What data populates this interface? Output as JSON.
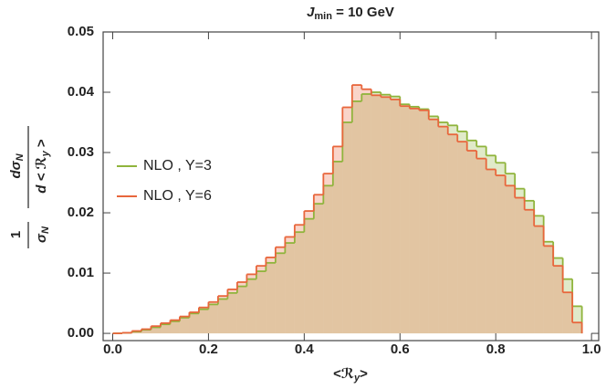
{
  "chart_data": {
    "type": "histogram",
    "title": [
      "J",
      "min",
      " = 10 GeV"
    ],
    "xlabel": [
      "<ℛ",
      "y",
      ">"
    ],
    "ylabel": {
      "left": {
        "numerator": [
          "1"
        ],
        "denominator": [
          "σ",
          "N"
        ]
      },
      "right": {
        "numerator": [
          "dσ",
          "N"
        ],
        "denominator": [
          "d < ℛ",
          "y",
          " >"
        ]
      }
    },
    "bins": [
      0,
      0.02,
      0.04,
      0.06,
      0.08,
      0.1,
      0.12,
      0.14,
      0.16,
      0.18,
      0.2,
      0.22,
      0.24,
      0.26,
      0.28,
      0.3,
      0.32,
      0.34,
      0.36,
      0.38,
      0.4,
      0.42,
      0.44,
      0.46,
      0.48,
      0.5,
      0.52,
      0.54,
      0.56,
      0.58,
      0.6,
      0.62,
      0.64,
      0.66,
      0.68,
      0.7,
      0.72,
      0.74,
      0.76,
      0.78,
      0.8,
      0.82,
      0.84,
      0.86,
      0.88,
      0.9,
      0.92,
      0.94,
      0.96,
      0.98
    ],
    "series": [
      {
        "name": "NLO , Y=3",
        "color": "#8fb43c",
        "values": [
          0,
          0.0001,
          0.0003,
          0.0006,
          0.001,
          0.0015,
          0.002,
          0.0026,
          0.0033,
          0.004,
          0.0048,
          0.0057,
          0.0067,
          0.0078,
          0.009,
          0.0103,
          0.0117,
          0.0133,
          0.015,
          0.0168,
          0.019,
          0.0215,
          0.0245,
          0.0285,
          0.035,
          0.0385,
          0.0397,
          0.04,
          0.0396,
          0.0393,
          0.038,
          0.0376,
          0.0372,
          0.036,
          0.035,
          0.0345,
          0.0335,
          0.032,
          0.031,
          0.0295,
          0.0283,
          0.0265,
          0.024,
          0.022,
          0.0195,
          0.0152,
          0.0125,
          0.009,
          0.0045
        ]
      },
      {
        "name": "NLO , Y=6",
        "color": "#e8663c",
        "values": [
          0,
          0.0001,
          0.0004,
          0.0007,
          0.0012,
          0.0017,
          0.0022,
          0.0028,
          0.0035,
          0.0043,
          0.0052,
          0.0062,
          0.0073,
          0.0085,
          0.0098,
          0.0112,
          0.0126,
          0.0143,
          0.016,
          0.018,
          0.0203,
          0.023,
          0.0265,
          0.031,
          0.0375,
          0.0412,
          0.0405,
          0.0395,
          0.0392,
          0.0388,
          0.0377,
          0.0373,
          0.037,
          0.0355,
          0.0343,
          0.033,
          0.0318,
          0.0303,
          0.029,
          0.0272,
          0.0262,
          0.0245,
          0.0225,
          0.0205,
          0.0178,
          0.0145,
          0.0112,
          0.0068,
          0.0018
        ]
      }
    ],
    "xlim": [
      -0.02,
      1.015
    ],
    "ylim": [
      -0.0012,
      0.05
    ],
    "xticks": [
      {
        "value": 0,
        "label": "0.0"
      },
      0.2,
      0.4,
      0.6,
      0.8,
      {
        "value": 1,
        "label": "1.0"
      }
    ],
    "yticks": [
      {
        "value": 0,
        "label": "0.00"
      },
      {
        "value": 0.01,
        "label": "0.01"
      },
      {
        "value": 0.02,
        "label": "0.02"
      },
      {
        "value": 0.03,
        "label": "0.03"
      },
      {
        "value": 0.04,
        "label": "0.04"
      },
      {
        "value": 0.05,
        "label": "0.05"
      }
    ],
    "legend": "left"
  }
}
